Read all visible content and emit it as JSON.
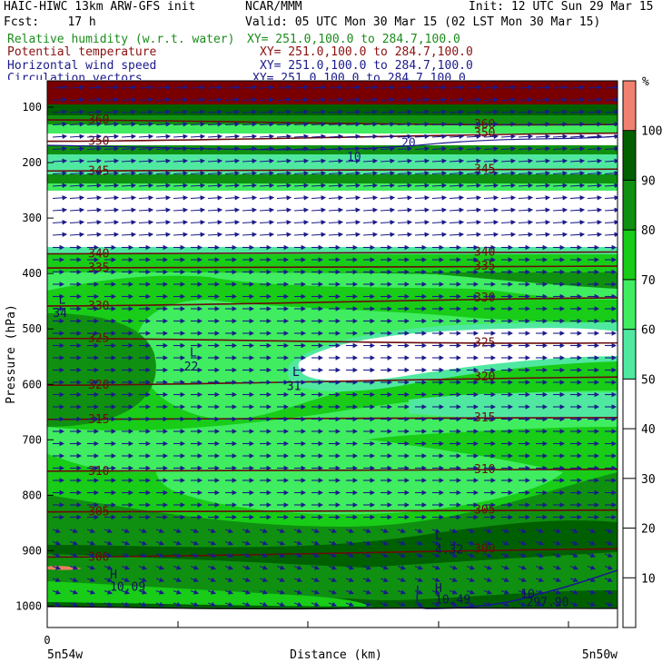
{
  "header": {
    "model": "HAIC-HIWC 13km ARW-GFS init",
    "org": "NCAR/MMM",
    "init": "Init: 12 UTC Sun 29 Mar 15",
    "fcst": "Fcst:    17 h",
    "valid": "Valid: 05 UTC Mon 30 Mar 15 (02 LST Mon 30 Mar 15)",
    "fields": [
      {
        "name": "Relative humidity (w.r.t. water)",
        "xy": "XY= 251.0,100.0 to 284.7,100.0",
        "color": "#1a8c1a"
      },
      {
        "name": "Potential temperature",
        "xy": "XY= 251.0,100.0 to 284.7,100.0",
        "color": "#8b1010"
      },
      {
        "name": "Horizontal wind speed",
        "xy": "XY= 251.0,100.0 to 284.7,100.0",
        "color": "#1a1a8c"
      },
      {
        "name": "Circulation vectors",
        "xy": "XY= 251.0,100.0 to 284.7,100.0",
        "color": "#1a1a8c"
      }
    ]
  },
  "chart_data": {
    "type": "heatmap",
    "ylabel": "Pressure (hPa)",
    "xlabel": "Distance (km)",
    "x_zero_label": "0",
    "x_left_label": "5n54w",
    "x_right_label": "5n50w",
    "ylim": [
      1050,
      80
    ],
    "yticks": [
      100,
      200,
      300,
      400,
      500,
      600,
      700,
      800,
      900,
      1000
    ],
    "colorbar": {
      "unit": "%",
      "ticks": [
        10,
        20,
        30,
        40,
        50,
        60,
        70,
        80,
        90,
        100
      ],
      "bands": [
        {
          "range": [
            0,
            50
          ],
          "color": "#ffffff"
        },
        {
          "range": [
            50,
            60
          ],
          "color": "#50e8a0"
        },
        {
          "range": [
            60,
            70
          ],
          "color": "#40ec60"
        },
        {
          "range": [
            70,
            80
          ],
          "color": "#18cc18"
        },
        {
          "range": [
            80,
            90
          ],
          "color": "#109010"
        },
        {
          "range": [
            90,
            100
          ],
          "color": "#006000"
        },
        {
          "range": [
            100,
            110
          ],
          "color": "#7a0000"
        }
      ]
    },
    "theta_contours": [
      {
        "label": "360",
        "p": 128
      },
      {
        "label": "350",
        "p": 155
      },
      {
        "label": "345",
        "p": 220
      },
      {
        "label": "340",
        "p": 358
      },
      {
        "label": "335",
        "p": 395
      },
      {
        "label": "330",
        "p": 452
      },
      {
        "label": "325",
        "p": 522
      },
      {
        "label": "320",
        "p": 595
      },
      {
        "label": "315",
        "p": 668
      },
      {
        "label": "310",
        "p": 750
      },
      {
        "label": "305",
        "p": 835
      },
      {
        "label": "300",
        "p": 905
      }
    ],
    "speed_contours": [
      {
        "label": "10",
        "p": 190
      },
      {
        "label": "20",
        "p": 165
      }
    ],
    "annotations": [
      {
        "text": "L",
        "p": 455,
        "frac": 0.02
      },
      {
        "text": "34",
        "p": 478,
        "frac": 0.01
      },
      {
        "text": "L",
        "p": 550,
        "frac": 0.25
      },
      {
        "text": "22",
        "p": 575,
        "frac": 0.24
      },
      {
        "text": "L",
        "p": 585,
        "frac": 0.43
      },
      {
        "text": "31",
        "p": 610,
        "frac": 0.42
      },
      {
        "text": "L",
        "p": 880,
        "frac": 0.68
      },
      {
        "text": "4.32",
        "p": 905,
        "frac": 0.68
      },
      {
        "text": "H",
        "p": 950,
        "frac": 0.11
      },
      {
        "text": "10.09",
        "p": 972,
        "frac": 0.11
      },
      {
        "text": "H",
        "p": 975,
        "frac": 0.68
      },
      {
        "text": "10.49",
        "p": 995,
        "frac": 0.68
      },
      {
        "text": "10",
        "p": 985,
        "frac": 0.83
      },
      {
        "text": "297.90",
        "p": 1000,
        "frac": 0.84
      }
    ]
  }
}
